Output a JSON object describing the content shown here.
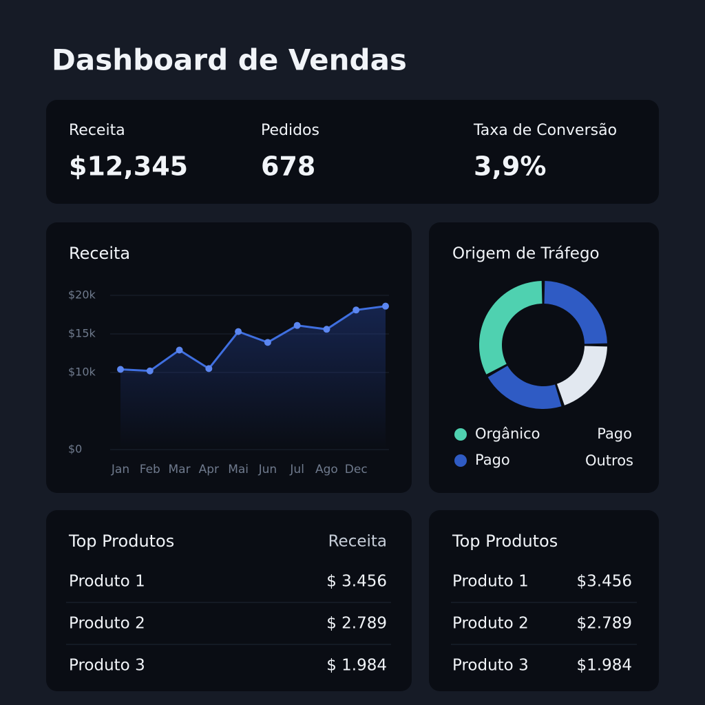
{
  "header": {
    "title": "Dashboard de Vendas"
  },
  "kpis": [
    {
      "label": "Receita",
      "value": "$12,345"
    },
    {
      "label": "Pedidos",
      "value": "678"
    },
    {
      "label": "Taxa de Conversão",
      "value": "3,9%"
    }
  ],
  "chart_data": [
    {
      "type": "line",
      "title": "Receita",
      "categories": [
        "Jan",
        "Feb",
        "Mar",
        "Apr",
        "Mai",
        "Jun",
        "Jul",
        "Ago",
        "Dec",
        null
      ],
      "values": [
        10400,
        10200,
        12900,
        10500,
        15300,
        13900,
        16100,
        15600,
        18100,
        18600
      ],
      "color": "#3f6fe0",
      "ylim": [
        0,
        20000
      ],
      "yticks": [
        {
          "value": 0,
          "label": "$0"
        },
        {
          "value": 10000,
          "label": "$10k"
        },
        {
          "value": 15000,
          "label": "$15k"
        },
        {
          "value": 20000,
          "label": "$20k"
        }
      ],
      "grid": true
    },
    {
      "type": "donut",
      "title": "Origem de Tráfego",
      "categories": [
        "Pago",
        "Outros",
        "Pago",
        "Orgânico"
      ],
      "values": [
        25,
        20,
        22,
        33
      ],
      "colors": [
        "#2f5bc4",
        "#e2e8f0",
        "#2f5bc4",
        "#4fd1b0"
      ]
    }
  ],
  "tables": [
    {
      "header": [
        "Top Produtos",
        "Receita"
      ],
      "rows": [
        [
          "Produto 1",
          "$ 3.456"
        ],
        [
          "Produto 2",
          "$ 2.789"
        ],
        [
          "Produto 3",
          "$ 1.984"
        ]
      ]
    },
    {
      "header": [
        "Top Produtos"
      ],
      "rows": [
        [
          "Produto 1",
          "$3.456"
        ],
        [
          "Produto 2",
          "$2.789"
        ],
        [
          "Produto 3",
          "$1.984"
        ]
      ]
    }
  ]
}
